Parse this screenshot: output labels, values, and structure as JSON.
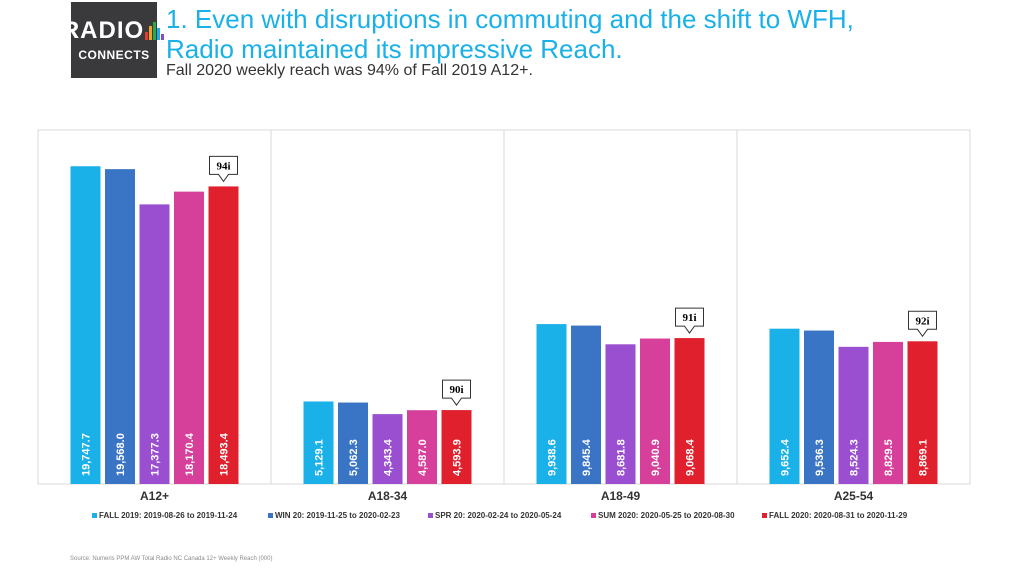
{
  "logo": {
    "top_text": "RADIO",
    "bottom_text": "CONNECTS",
    "bar_colors": [
      "#e03a3a",
      "#f2a12a",
      "#2ea84a",
      "#1ab0e8",
      "#8a4bc4"
    ]
  },
  "header": {
    "title": "1. Even with disruptions in commuting and the shift to WFH, Radio maintained its impressive Reach.",
    "subtitle": "Fall 2020 weekly reach was 94% of Fall 2019 A12+."
  },
  "chart_data": {
    "type": "bar",
    "categories": [
      "A12+",
      "A18-34",
      "A18-49",
      "A25-54"
    ],
    "series": [
      {
        "name": "FALL 2019: 2019-08-26 to 2019-11-24",
        "color": "#1ab0e8",
        "values": [
          19747.7,
          5129.1,
          9938.6,
          9652.4
        ],
        "labels": [
          "19,747.7",
          "5,129.1",
          "9,938.6",
          "9,652.4"
        ]
      },
      {
        "name": "WIN 20: 2019-11-25 to 2020-02-23",
        "color": "#3a74c4",
        "values": [
          19568.0,
          5062.3,
          9845.4,
          9536.3
        ],
        "labels": [
          "19,568.0",
          "5,062.3",
          "9,845.4",
          "9,536.3"
        ]
      },
      {
        "name": "SPR 20: 2020-02-24 to 2020-05-24",
        "color": "#9a4fd0",
        "values": [
          17377.3,
          4343.4,
          8681.8,
          8524.3
        ],
        "labels": [
          "17,377.3",
          "4,343.4",
          "8,681.8",
          "8,524.3"
        ]
      },
      {
        "name": "SUM 2020: 2020-05-25 to 2020-08-30",
        "color": "#d7409a",
        "values": [
          18170.4,
          4587.0,
          9040.9,
          8829.5
        ],
        "labels": [
          "18,170.4",
          "4,587.0",
          "9,040.9",
          "8,829.5"
        ]
      },
      {
        "name": "FALL 2020: 2020-08-31 to 2020-11-29",
        "color": "#e0202d",
        "values": [
          18493.4,
          4593.9,
          9068.4,
          8869.1
        ],
        "labels": [
          "18,493.4",
          "4,593.9",
          "9,068.4",
          "8,869.1"
        ]
      }
    ],
    "index_callouts": [
      "94i",
      "90i",
      "91i",
      "92i"
    ],
    "ylim": [
      0,
      22000
    ],
    "grid": false,
    "legend_position": "bottom"
  },
  "footer": {
    "source": "Source: Numeris PPM AW Total Radio NC Canada 12+ Weekly Reach (000)"
  }
}
